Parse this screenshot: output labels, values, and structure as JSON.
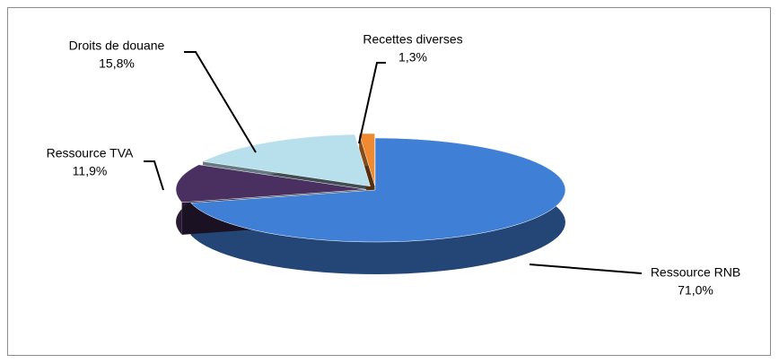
{
  "chart_data": {
    "type": "pie",
    "categories": [
      "Ressource RNB",
      "Ressource TVA",
      "Droits de douane",
      "Recettes diverses"
    ],
    "values": [
      71.0,
      11.9,
      15.8,
      1.3
    ],
    "value_labels": [
      "71,0%",
      "11,9%",
      "15,8%",
      "1,3%"
    ],
    "colors": [
      "#3f7fd6",
      "#4a3060",
      "#b7e0ec",
      "#f08a30"
    ]
  }
}
